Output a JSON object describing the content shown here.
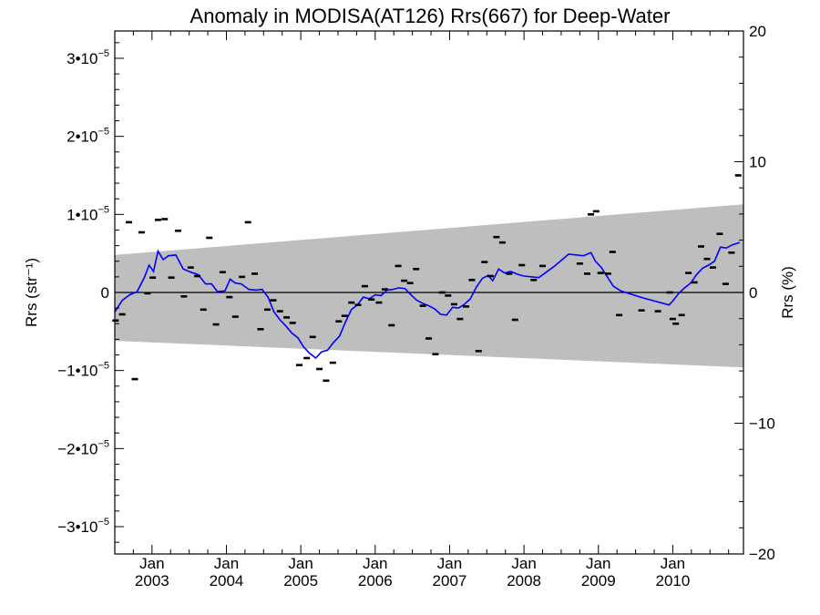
{
  "chart_data": {
    "type": "scatter",
    "title": "Anomaly in MODISA(AT126) Rrs(667) for Deep-Water",
    "ylabel_left": "Rrs (str⁻¹)",
    "ylabel_right": "Rrs (%)",
    "xlabel": "",
    "xlim": [
      2002.5,
      2010.95
    ],
    "ylim": [
      -3.35e-05,
      3.35e-05
    ],
    "ylim_right": [
      -20,
      20
    ],
    "grid": false,
    "left_ticks": [
      {
        "value": 3e-05,
        "mantissa": "3•10",
        "exp": "−5"
      },
      {
        "value": 2e-05,
        "mantissa": "2•10",
        "exp": "−5"
      },
      {
        "value": 1e-05,
        "mantissa": "1•10",
        "exp": "−5"
      },
      {
        "value": 0,
        "mantissa": "0",
        "exp": ""
      },
      {
        "value": -1e-05,
        "mantissa": "−1•10",
        "exp": "−5"
      },
      {
        "value": -2e-05,
        "mantissa": "−2•10",
        "exp": "−5"
      },
      {
        "value": -3e-05,
        "mantissa": "−3•10",
        "exp": "−5"
      }
    ],
    "right_ticks": [
      "20",
      "10",
      "0",
      "−10",
      "−20"
    ],
    "x_ticks": [
      {
        "value": 2003.0,
        "month": "Jan",
        "year": "2003"
      },
      {
        "value": 2004.0,
        "month": "Jan",
        "year": "2004"
      },
      {
        "value": 2005.0,
        "month": "Jan",
        "year": "2005"
      },
      {
        "value": 2006.0,
        "month": "Jan",
        "year": "2006"
      },
      {
        "value": 2007.0,
        "month": "Jan",
        "year": "2007"
      },
      {
        "value": 2008.0,
        "month": "Jan",
        "year": "2008"
      },
      {
        "value": 2009.0,
        "month": "Jan",
        "year": "2009"
      },
      {
        "value": 2010.0,
        "month": "Jan",
        "year": "2010"
      }
    ],
    "band": {
      "color": "#bebebe",
      "upper": [
        [
          2002.5,
          4.8e-06
        ],
        [
          2010.95,
          1.13e-05
        ]
      ],
      "lower": [
        [
          2002.5,
          -6.2e-06
        ],
        [
          2010.95,
          -9.6e-06
        ]
      ]
    },
    "points": {
      "color": "#000000",
      "marker": "short horizontal bar",
      "data": [
        [
          2002.51,
          -3.6e-06
        ],
        [
          2002.6,
          -2.8e-06
        ],
        [
          2002.69,
          9e-06
        ],
        [
          2002.77,
          -1.11e-05
        ],
        [
          2002.86,
          7.7e-06
        ],
        [
          2002.94,
          -1e-07
        ],
        [
          2003.01,
          1.9e-06
        ],
        [
          2003.08,
          9.3e-06
        ],
        [
          2003.17,
          9.4e-06
        ],
        [
          2003.26,
          1.9e-06
        ],
        [
          2003.35,
          7.9e-06
        ],
        [
          2003.43,
          -5e-07
        ],
        [
          2003.52,
          3.2e-06
        ],
        [
          2003.61,
          2.1e-06
        ],
        [
          2003.69,
          -2.2e-06
        ],
        [
          2003.77,
          7e-06
        ],
        [
          2003.86,
          -4.1e-06
        ],
        [
          2003.95,
          2.6e-06
        ],
        [
          2004.04,
          -6e-07
        ],
        [
          2004.12,
          -3.1e-06
        ],
        [
          2004.21,
          2e-06
        ],
        [
          2004.29,
          9e-06
        ],
        [
          2004.38,
          2.4e-06
        ],
        [
          2004.46,
          -4.7e-06
        ],
        [
          2004.55,
          -2.2e-06
        ],
        [
          2004.63,
          -1e-06
        ],
        [
          2004.72,
          -2.4e-06
        ],
        [
          2004.81,
          -3.2e-06
        ],
        [
          2004.89,
          -3.9e-06
        ],
        [
          2004.98,
          -9.3e-06
        ],
        [
          2005.08,
          -8.4e-06
        ],
        [
          2005.16,
          -5.7e-06
        ],
        [
          2005.25,
          -9.8e-06
        ],
        [
          2005.34,
          -1.13e-05
        ],
        [
          2005.43,
          -9e-06
        ],
        [
          2005.51,
          -3.7e-06
        ],
        [
          2005.59,
          -3e-06
        ],
        [
          2005.68,
          -1.3e-06
        ],
        [
          2005.77,
          -1.6e-06
        ],
        [
          2005.86,
          8e-07
        ],
        [
          2005.95,
          -9e-07
        ],
        [
          2006.05,
          -1.3e-06
        ],
        [
          2006.13,
          4e-07
        ],
        [
          2006.22,
          -4.2e-06
        ],
        [
          2006.31,
          3.4e-06
        ],
        [
          2006.39,
          1.5e-06
        ],
        [
          2006.47,
          1.2e-06
        ],
        [
          2006.55,
          3e-06
        ],
        [
          2006.64,
          -1.7e-06
        ],
        [
          2006.72,
          -5.9e-06
        ],
        [
          2006.81,
          -7.9e-06
        ],
        [
          2006.9,
          0.0
        ],
        [
          2006.98,
          -4e-07
        ],
        [
          2007.06,
          -1.5e-06
        ],
        [
          2007.14,
          -3.4e-06
        ],
        [
          2007.22,
          -1.8e-06
        ],
        [
          2007.3,
          1.6e-06
        ],
        [
          2007.39,
          -7.5e-06
        ],
        [
          2007.47,
          3.9e-06
        ],
        [
          2007.55,
          2.1e-06
        ],
        [
          2007.63,
          7.1e-06
        ],
        [
          2007.71,
          6.4e-06
        ],
        [
          2007.8,
          2.4e-06
        ],
        [
          2007.88,
          -3.5e-06
        ],
        [
          2007.97,
          3.5e-06
        ],
        [
          2008.13,
          1.6e-06
        ],
        [
          2008.25,
          3.4e-06
        ],
        [
          2008.75,
          3.7e-06
        ],
        [
          2008.85,
          2.4e-06
        ],
        [
          2008.9,
          1e-05
        ],
        [
          2008.97,
          1.04e-05
        ],
        [
          2009.03,
          2.5e-06
        ],
        [
          2009.13,
          2.4e-06
        ],
        [
          2009.19,
          5.2e-06
        ],
        [
          2009.28,
          -2.9e-06
        ],
        [
          2009.58,
          -2.3e-06
        ],
        [
          2009.8,
          -2.4e-06
        ],
        [
          2009.96,
          0.0
        ],
        [
          2010.0,
          -3.4e-06
        ],
        [
          2010.04,
          -4e-06
        ],
        [
          2010.12,
          -2.9e-06
        ],
        [
          2010.21,
          2.5e-06
        ],
        [
          2010.29,
          1.3e-06
        ],
        [
          2010.38,
          5.9e-06
        ],
        [
          2010.46,
          4.3e-06
        ],
        [
          2010.54,
          3.2e-06
        ],
        [
          2010.63,
          7.5e-06
        ],
        [
          2010.71,
          1.1e-06
        ],
        [
          2010.79,
          5.1e-06
        ],
        [
          2010.88,
          1.5e-05
        ]
      ]
    },
    "smooth_line": {
      "color": "#0000ff",
      "data": [
        [
          2002.5,
          -2.5e-06
        ],
        [
          2002.6,
          -1e-06
        ],
        [
          2002.7,
          -3e-07
        ],
        [
          2002.8,
          1e-07
        ],
        [
          2002.9,
          2e-06
        ],
        [
          2002.96,
          3.5e-06
        ],
        [
          2003.02,
          2.7e-06
        ],
        [
          2003.08,
          5.3e-06
        ],
        [
          2003.15,
          4.2e-06
        ],
        [
          2003.22,
          4.7e-06
        ],
        [
          2003.32,
          4.8e-06
        ],
        [
          2003.42,
          3e-06
        ],
        [
          2003.52,
          2.6e-06
        ],
        [
          2003.62,
          2.3e-06
        ],
        [
          2003.72,
          1.1e-06
        ],
        [
          2003.8,
          1.1e-06
        ],
        [
          2003.88,
          1e-07
        ],
        [
          2003.98,
          2e-07
        ],
        [
          2004.05,
          1.7e-06
        ],
        [
          2004.12,
          1.2e-06
        ],
        [
          2004.2,
          1.1e-06
        ],
        [
          2004.3,
          4e-07
        ],
        [
          2004.4,
          3e-07
        ],
        [
          2004.48,
          4e-07
        ],
        [
          2004.56,
          -6e-07
        ],
        [
          2004.64,
          -2.5e-06
        ],
        [
          2004.72,
          -3.5e-06
        ],
        [
          2004.8,
          -4.3e-06
        ],
        [
          2004.88,
          -5.2e-06
        ],
        [
          2004.96,
          -5.8e-06
        ],
        [
          2005.04,
          -7e-06
        ],
        [
          2005.12,
          -7.8e-06
        ],
        [
          2005.2,
          -8.4e-06
        ],
        [
          2005.28,
          -7.6e-06
        ],
        [
          2005.36,
          -7.4e-06
        ],
        [
          2005.44,
          -6.4e-06
        ],
        [
          2005.52,
          -5.6e-06
        ],
        [
          2005.6,
          -3.8e-06
        ],
        [
          2005.68,
          -2.2e-06
        ],
        [
          2005.76,
          -1.6e-06
        ],
        [
          2005.84,
          -6e-07
        ],
        [
          2005.92,
          -8e-07
        ],
        [
          2006.0,
          -3e-07
        ],
        [
          2006.08,
          -4e-07
        ],
        [
          2006.16,
          3e-07
        ],
        [
          2006.24,
          4e-07
        ],
        [
          2006.32,
          6e-07
        ],
        [
          2006.4,
          5e-07
        ],
        [
          2006.48,
          -3e-07
        ],
        [
          2006.56,
          -1e-06
        ],
        [
          2006.64,
          -1.4e-06
        ],
        [
          2006.72,
          -1.7e-06
        ],
        [
          2006.8,
          -2.1e-06
        ],
        [
          2006.88,
          -2.8e-06
        ],
        [
          2006.96,
          -2.9e-06
        ],
        [
          2007.04,
          -1.9e-06
        ],
        [
          2007.12,
          -2e-06
        ],
        [
          2007.2,
          -1.5e-06
        ],
        [
          2007.28,
          -8e-07
        ],
        [
          2007.36,
          7e-07
        ],
        [
          2007.44,
          1.8e-06
        ],
        [
          2007.52,
          2.2e-06
        ],
        [
          2007.58,
          1.5e-06
        ],
        [
          2007.66,
          3e-06
        ],
        [
          2007.74,
          2.5e-06
        ],
        [
          2007.82,
          2.7e-06
        ],
        [
          2007.92,
          2.3e-06
        ],
        [
          2008.0,
          2.1e-06
        ],
        [
          2008.2,
          1.9e-06
        ],
        [
          2008.4,
          3.3e-06
        ],
        [
          2008.6,
          4.9e-06
        ],
        [
          2008.8,
          4.7e-06
        ],
        [
          2008.9,
          5.1e-06
        ],
        [
          2008.96,
          4e-06
        ],
        [
          2009.04,
          3.2e-06
        ],
        [
          2009.12,
          2e-06
        ],
        [
          2009.2,
          8e-07
        ],
        [
          2009.3,
          2e-07
        ],
        [
          2009.6,
          -7e-07
        ],
        [
          2009.95,
          -1.6e-06
        ],
        [
          2010.0,
          -1.1e-06
        ],
        [
          2010.08,
          -1e-07
        ],
        [
          2010.16,
          6e-07
        ],
        [
          2010.24,
          1.2e-06
        ],
        [
          2010.32,
          2.3e-06
        ],
        [
          2010.4,
          3.1e-06
        ],
        [
          2010.48,
          3.5e-06
        ],
        [
          2010.56,
          4e-06
        ],
        [
          2010.64,
          5.8e-06
        ],
        [
          2010.72,
          5.7e-06
        ],
        [
          2010.8,
          6.1e-06
        ],
        [
          2010.9,
          6.4e-06
        ]
      ]
    }
  }
}
